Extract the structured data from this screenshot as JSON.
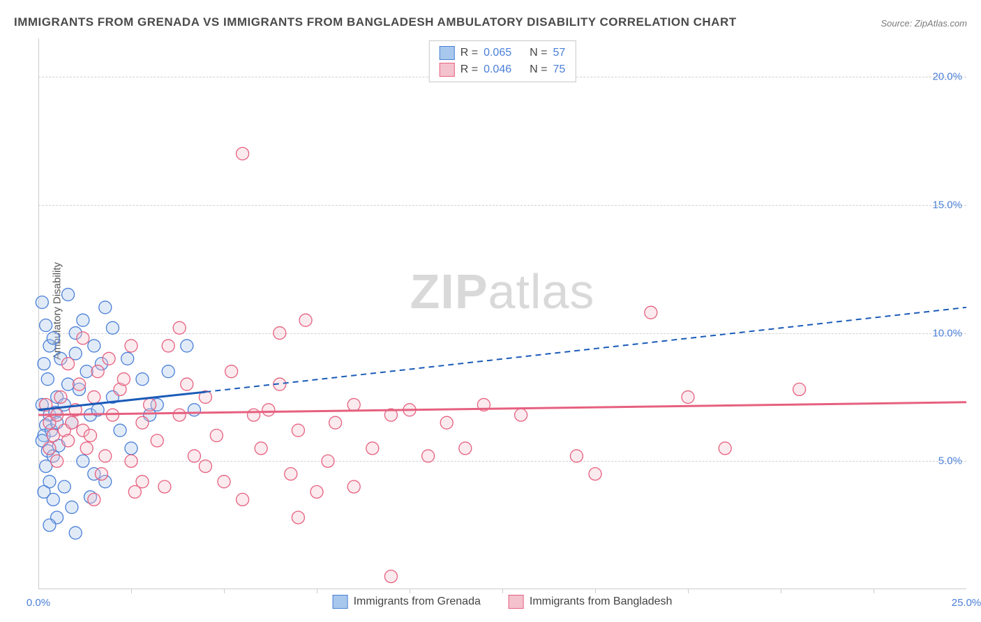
{
  "title": "IMMIGRANTS FROM GRENADA VS IMMIGRANTS FROM BANGLADESH AMBULATORY DISABILITY CORRELATION CHART",
  "source": "Source: ZipAtlas.com",
  "y_axis_label": "Ambulatory Disability",
  "watermark_bold": "ZIP",
  "watermark_light": "atlas",
  "chart": {
    "type": "scatter",
    "xlim": [
      0,
      25
    ],
    "ylim": [
      0,
      21.5
    ],
    "x_ticks_major": [
      0,
      25
    ],
    "x_ticks_minor": [
      2.5,
      5,
      7.5,
      10,
      12.5,
      15,
      17.5,
      20,
      22.5
    ],
    "y_ticks": [
      5,
      10,
      15,
      20
    ],
    "x_tick_labels": {
      "0": "0.0%",
      "25": "25.0%"
    },
    "y_tick_labels": {
      "5": "5.0%",
      "10": "10.0%",
      "15": "15.0%",
      "20": "20.0%"
    },
    "tick_label_color": "#4a7fd8",
    "background_color": "#ffffff",
    "grid_color": "#d0d0d0",
    "axis_color": "#cccccc",
    "marker_radius": 9,
    "marker_stroke_width": 1.3,
    "marker_fill_opacity": 0.35,
    "series": [
      {
        "name": "Immigrants from Grenada",
        "color_fill": "#a8c7ec",
        "color_stroke": "#4a7fd8",
        "r_label": "R =",
        "r_value": "0.065",
        "n_label": "N =",
        "n_value": "57",
        "regression": {
          "solid": {
            "x1": 0,
            "y1": 7.0,
            "x2": 4.5,
            "y2": 7.7
          },
          "dashed": {
            "x1": 4.5,
            "y1": 7.7,
            "x2": 25,
            "y2": 11.0
          },
          "color": "#1a5bb8",
          "width": 3,
          "dash": "8,6"
        },
        "points": [
          [
            0.1,
            11.2
          ],
          [
            0.2,
            10.3
          ],
          [
            0.3,
            9.5
          ],
          [
            0.15,
            8.8
          ],
          [
            0.4,
            9.8
          ],
          [
            0.25,
            8.2
          ],
          [
            0.5,
            7.5
          ],
          [
            0.1,
            7.2
          ],
          [
            0.3,
            6.8
          ],
          [
            0.2,
            6.4
          ],
          [
            0.45,
            6.9
          ],
          [
            0.15,
            6.0
          ],
          [
            0.35,
            6.2
          ],
          [
            0.5,
            6.5
          ],
          [
            0.1,
            5.8
          ],
          [
            0.25,
            5.4
          ],
          [
            0.4,
            5.2
          ],
          [
            0.2,
            4.8
          ],
          [
            0.55,
            5.6
          ],
          [
            0.3,
            4.2
          ],
          [
            0.15,
            3.8
          ],
          [
            0.4,
            3.5
          ],
          [
            0.7,
            7.2
          ],
          [
            0.8,
            8.0
          ],
          [
            0.9,
            6.5
          ],
          [
            1.0,
            9.2
          ],
          [
            1.1,
            7.8
          ],
          [
            1.2,
            5.0
          ],
          [
            1.3,
            8.5
          ],
          [
            1.4,
            6.8
          ],
          [
            1.5,
            4.5
          ],
          [
            1.0,
            10.0
          ],
          [
            0.6,
            9.0
          ],
          [
            0.7,
            4.0
          ],
          [
            0.9,
            3.2
          ],
          [
            1.2,
            10.5
          ],
          [
            1.8,
            11.0
          ],
          [
            1.6,
            7.0
          ],
          [
            1.7,
            8.8
          ],
          [
            2.0,
            7.5
          ],
          [
            2.2,
            6.2
          ],
          [
            2.4,
            9.0
          ],
          [
            2.5,
            5.5
          ],
          [
            2.8,
            8.2
          ],
          [
            3.0,
            6.8
          ],
          [
            1.0,
            2.2
          ],
          [
            0.5,
            2.8
          ],
          [
            1.4,
            3.6
          ],
          [
            1.8,
            4.2
          ],
          [
            0.8,
            11.5
          ],
          [
            0.3,
            2.5
          ],
          [
            1.5,
            9.5
          ],
          [
            2.0,
            10.2
          ],
          [
            3.2,
            7.2
          ],
          [
            3.5,
            8.5
          ],
          [
            4.0,
            9.5
          ],
          [
            4.2,
            7.0
          ]
        ]
      },
      {
        "name": "Immigrants from Bangladesh",
        "color_fill": "#f4c2cd",
        "color_stroke": "#e6607f",
        "r_label": "R =",
        "r_value": "0.046",
        "n_label": "N =",
        "n_value": "75",
        "regression": {
          "solid": {
            "x1": 0,
            "y1": 6.8,
            "x2": 25,
            "y2": 7.3
          },
          "dashed": null,
          "color": "#e6607f",
          "width": 3,
          "dash": null
        },
        "points": [
          [
            0.2,
            7.2
          ],
          [
            0.3,
            6.5
          ],
          [
            0.4,
            6.0
          ],
          [
            0.5,
            6.8
          ],
          [
            0.6,
            7.5
          ],
          [
            0.3,
            5.5
          ],
          [
            0.7,
            6.2
          ],
          [
            0.8,
            5.8
          ],
          [
            0.5,
            5.0
          ],
          [
            0.9,
            6.5
          ],
          [
            1.0,
            7.0
          ],
          [
            1.1,
            8.0
          ],
          [
            1.2,
            6.2
          ],
          [
            1.3,
            5.5
          ],
          [
            1.5,
            7.5
          ],
          [
            1.4,
            6.0
          ],
          [
            1.6,
            8.5
          ],
          [
            1.8,
            5.2
          ],
          [
            2.0,
            6.8
          ],
          [
            1.7,
            4.5
          ],
          [
            2.2,
            7.8
          ],
          [
            1.9,
            9.0
          ],
          [
            2.5,
            5.0
          ],
          [
            2.3,
            8.2
          ],
          [
            2.8,
            6.5
          ],
          [
            2.6,
            3.8
          ],
          [
            3.0,
            7.2
          ],
          [
            3.2,
            5.8
          ],
          [
            3.5,
            9.5
          ],
          [
            3.4,
            4.0
          ],
          [
            3.8,
            6.8
          ],
          [
            4.0,
            8.0
          ],
          [
            4.2,
            5.2
          ],
          [
            4.5,
            7.5
          ],
          [
            4.8,
            6.0
          ],
          [
            5.0,
            4.2
          ],
          [
            5.2,
            8.5
          ],
          [
            5.5,
            3.5
          ],
          [
            5.8,
            6.8
          ],
          [
            6.0,
            5.5
          ],
          [
            6.2,
            7.0
          ],
          [
            6.5,
            10.0
          ],
          [
            5.5,
            17.0
          ],
          [
            6.8,
            4.5
          ],
          [
            7.0,
            6.2
          ],
          [
            7.2,
            10.5
          ],
          [
            7.5,
            3.8
          ],
          [
            7.8,
            5.0
          ],
          [
            8.0,
            6.5
          ],
          [
            7.0,
            2.8
          ],
          [
            8.5,
            7.2
          ],
          [
            9.0,
            5.5
          ],
          [
            9.5,
            6.8
          ],
          [
            10.0,
            7.0
          ],
          [
            10.5,
            5.2
          ],
          [
            11.0,
            6.5
          ],
          [
            9.5,
            0.5
          ],
          [
            12.0,
            7.2
          ],
          [
            11.5,
            5.5
          ],
          [
            13.0,
            6.8
          ],
          [
            15.0,
            4.5
          ],
          [
            16.5,
            10.8
          ],
          [
            17.5,
            7.5
          ],
          [
            14.5,
            5.2
          ],
          [
            18.5,
            5.5
          ],
          [
            20.5,
            7.8
          ],
          [
            2.5,
            9.5
          ],
          [
            3.8,
            10.2
          ],
          [
            1.2,
            9.8
          ],
          [
            0.8,
            8.8
          ],
          [
            1.5,
            3.5
          ],
          [
            2.8,
            4.2
          ],
          [
            4.5,
            4.8
          ],
          [
            6.5,
            8.0
          ],
          [
            8.5,
            4.0
          ]
        ]
      }
    ]
  },
  "legend_bottom": [
    {
      "label": "Immigrants from Grenada",
      "fill": "#a8c7ec",
      "stroke": "#4a7fd8"
    },
    {
      "label": "Immigrants from Bangladesh",
      "fill": "#f4c2cd",
      "stroke": "#e6607f"
    }
  ]
}
